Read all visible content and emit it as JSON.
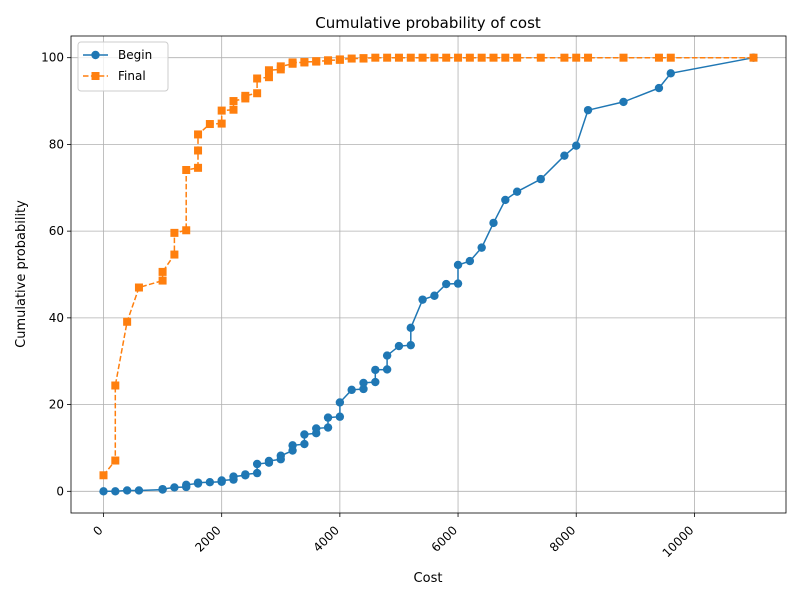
{
  "chart_data": {
    "type": "line",
    "title": "Cumulative probability of cost",
    "xlabel": "Cost",
    "ylabel": "Cumulative probability",
    "xlim": [
      -550,
      11550
    ],
    "ylim": [
      -5,
      105
    ],
    "xticks": [
      0,
      2000,
      4000,
      6000,
      8000,
      10000
    ],
    "yticks": [
      0,
      20,
      40,
      60,
      80,
      100
    ],
    "xtick_rotation": 45,
    "grid": true,
    "legend_position": "top-left",
    "series": [
      {
        "name": "Begin",
        "color": "#1f77b4",
        "linestyle": "solid",
        "marker": "circle",
        "points": [
          [
            0,
            0
          ],
          [
            200,
            0
          ],
          [
            400,
            0.2
          ],
          [
            600,
            0.2
          ],
          [
            1000,
            0.4
          ],
          [
            1000,
            0.5
          ],
          [
            1200,
            0.9
          ],
          [
            1400,
            1.0
          ],
          [
            1400,
            1.5
          ],
          [
            1600,
            1.8
          ],
          [
            1600,
            2.0
          ],
          [
            1800,
            2.1
          ],
          [
            2000,
            2.2
          ],
          [
            2000,
            2.5
          ],
          [
            2200,
            2.7
          ],
          [
            2200,
            3.4
          ],
          [
            2400,
            3.7
          ],
          [
            2400,
            3.9
          ],
          [
            2600,
            4.2
          ],
          [
            2600,
            6.3
          ],
          [
            2800,
            6.6
          ],
          [
            2800,
            7.0
          ],
          [
            3000,
            7.4
          ],
          [
            3000,
            8.2
          ],
          [
            3200,
            9.4
          ],
          [
            3200,
            10.6
          ],
          [
            3400,
            10.9
          ],
          [
            3400,
            13.1
          ],
          [
            3600,
            13.4
          ],
          [
            3600,
            14.5
          ],
          [
            3800,
            14.7
          ],
          [
            3800,
            17.0
          ],
          [
            4000,
            17.2
          ],
          [
            4000,
            20.5
          ],
          [
            4200,
            23.4
          ],
          [
            4400,
            23.6
          ],
          [
            4400,
            25.0
          ],
          [
            4600,
            25.2
          ],
          [
            4600,
            28.0
          ],
          [
            4800,
            28.1
          ],
          [
            4800,
            31.3
          ],
          [
            5000,
            33.5
          ],
          [
            5200,
            33.7
          ],
          [
            5200,
            37.7
          ],
          [
            5400,
            44.2
          ],
          [
            5600,
            45.1
          ],
          [
            5800,
            47.8
          ],
          [
            6000,
            47.9
          ],
          [
            6000,
            52.2
          ],
          [
            6200,
            53.1
          ],
          [
            6400,
            56.2
          ],
          [
            6600,
            61.9
          ],
          [
            6800,
            67.2
          ],
          [
            7000,
            69.1
          ],
          [
            7400,
            72.0
          ],
          [
            7800,
            77.4
          ],
          [
            8000,
            79.7
          ],
          [
            8200,
            87.9
          ],
          [
            8800,
            89.8
          ],
          [
            9400,
            93.0
          ],
          [
            9600,
            96.4
          ],
          [
            11000,
            100
          ]
        ]
      },
      {
        "name": "Final",
        "color": "#ff7f0e",
        "linestyle": "dashed",
        "marker": "square",
        "points": [
          [
            0,
            3.7
          ],
          [
            200,
            7.1
          ],
          [
            200,
            24.4
          ],
          [
            400,
            39.1
          ],
          [
            600,
            47.0
          ],
          [
            1000,
            48.6
          ],
          [
            1000,
            50.6
          ],
          [
            1200,
            54.6
          ],
          [
            1200,
            59.6
          ],
          [
            1400,
            60.2
          ],
          [
            1400,
            74.1
          ],
          [
            1600,
            74.6
          ],
          [
            1600,
            78.6
          ],
          [
            1600,
            82.3
          ],
          [
            1800,
            84.7
          ],
          [
            2000,
            84.8
          ],
          [
            2000,
            87.8
          ],
          [
            2200,
            88.0
          ],
          [
            2200,
            90.0
          ],
          [
            2400,
            90.6
          ],
          [
            2400,
            91.2
          ],
          [
            2600,
            91.8
          ],
          [
            2600,
            95.2
          ],
          [
            2800,
            95.5
          ],
          [
            2800,
            97.1
          ],
          [
            3000,
            97.3
          ],
          [
            3000,
            98.0
          ],
          [
            3200,
            98.6
          ],
          [
            3200,
            98.9
          ],
          [
            3400,
            98.9
          ],
          [
            3400,
            99.0
          ],
          [
            3600,
            99.1
          ],
          [
            3600,
            99.2
          ],
          [
            3800,
            99.3
          ],
          [
            3800,
            99.4
          ],
          [
            4000,
            99.5
          ],
          [
            4000,
            99.6
          ],
          [
            4200,
            99.8
          ],
          [
            4400,
            99.8
          ],
          [
            4400,
            99.9
          ],
          [
            4600,
            100
          ],
          [
            4800,
            100
          ],
          [
            5000,
            100
          ],
          [
            5200,
            100
          ],
          [
            5400,
            100
          ],
          [
            5600,
            100
          ],
          [
            5800,
            100
          ],
          [
            6000,
            100
          ],
          [
            6200,
            100
          ],
          [
            6400,
            100
          ],
          [
            6600,
            100
          ],
          [
            6800,
            100
          ],
          [
            7000,
            100
          ],
          [
            7400,
            100
          ],
          [
            7800,
            100
          ],
          [
            8000,
            100
          ],
          [
            8200,
            100
          ],
          [
            8800,
            100
          ],
          [
            9400,
            100
          ],
          [
            9600,
            100
          ],
          [
            11000,
            100
          ]
        ]
      }
    ]
  }
}
